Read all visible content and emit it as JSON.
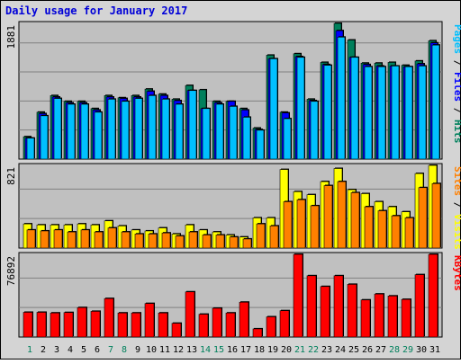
{
  "chart_data": {
    "type": "bar",
    "title": "Daily usage for January 2017",
    "colors": {
      "title": "#0000d8",
      "hits": "#00805c",
      "files": "#0000ff",
      "pages": "#00c0ff",
      "visits": "#ffff00",
      "sites": "#ff8000",
      "kbytes": "#ff0000",
      "weekday_tick": "#000000",
      "weekend_tick": "#00805c",
      "panel_bg": "#c0c0c0",
      "frame_bg": "#d4d4d4"
    },
    "categories": [
      "1",
      "2",
      "3",
      "4",
      "5",
      "6",
      "7",
      "8",
      "9",
      "10",
      "11",
      "12",
      "13",
      "14",
      "15",
      "16",
      "17",
      "18",
      "19",
      "20",
      "21",
      "22",
      "23",
      "24",
      "25",
      "26",
      "27",
      "28",
      "29",
      "30",
      "31"
    ],
    "weekend_days": [
      "1",
      "7",
      "8",
      "14",
      "15",
      "21",
      "22",
      "28",
      "29"
    ],
    "panels": [
      {
        "name": "hits-files-pages",
        "ymax_label": "1881",
        "ylim": [
          0,
          1881
        ],
        "legend": [
          {
            "text": "Pages",
            "color": "#00c0ff"
          },
          {
            "text": " / ",
            "color": "#000000"
          },
          {
            "text": "Files",
            "color": "#0000ff"
          },
          {
            "text": " / ",
            "color": "#000000"
          },
          {
            "text": "Hits",
            "color": "#00805c"
          }
        ],
        "series": [
          {
            "name": "Hits",
            "color": "#00805c",
            "values": [
              310,
              650,
              880,
              800,
              800,
              700,
              880,
              850,
              880,
              970,
              900,
              830,
              1020,
              960,
              800,
              800,
              700,
              430,
              1440,
              650,
              1460,
              830,
              1340,
              1881,
              1650,
              1330,
              1330,
              1340,
              1300,
              1360,
              1640
            ]
          },
          {
            "name": "Files",
            "color": "#0000ff",
            "values": [
              290,
              630,
              860,
              780,
              780,
              680,
              860,
              840,
              860,
              940,
              880,
              810,
              950,
              700,
              780,
              800,
              680,
              410,
              1390,
              640,
              1420,
              810,
              1310,
              1780,
              1410,
              1310,
              1290,
              1290,
              1280,
              1320,
              1610
            ]
          },
          {
            "name": "Pages",
            "color": "#00c0ff",
            "values": [
              290,
              600,
              840,
              760,
              760,
              650,
              830,
              800,
              840,
              880,
              830,
              760,
              950,
              700,
              760,
              730,
              580,
              400,
              1390,
              560,
              1410,
              800,
              1300,
              1690,
              1410,
              1280,
              1280,
              1290,
              1280,
              1290,
              1580
            ]
          }
        ]
      },
      {
        "name": "visits-sites",
        "ymax_label": "821",
        "ylim": [
          0,
          821
        ],
        "legend": [
          {
            "text": "Sites",
            "color": "#ff8000"
          },
          {
            "text": " / ",
            "color": "#000000"
          },
          {
            "text": "Visits",
            "color": "#ffff00"
          }
        ],
        "series": [
          {
            "name": "Visits",
            "color": "#ffff00",
            "values": [
              240,
              230,
              230,
              230,
              240,
              230,
              270,
              220,
              180,
              170,
              200,
              140,
              230,
              180,
              160,
              130,
              110,
              300,
              300,
              780,
              560,
              530,
              660,
              790,
              580,
              540,
              460,
              410,
              360,
              740,
              821
            ]
          },
          {
            "name": "Sites",
            "color": "#ff8000",
            "values": [
              180,
              170,
              180,
              160,
              180,
              160,
              200,
              160,
              140,
              140,
              150,
              120,
              160,
              130,
              130,
              110,
              90,
              240,
              220,
              460,
              480,
              420,
              620,
              660,
              550,
              410,
              370,
              320,
              300,
              600,
              640
            ]
          }
        ]
      },
      {
        "name": "kbytes",
        "ymax_label": "76892",
        "ylim": [
          0,
          76892
        ],
        "legend": [
          {
            "text": "KBytes",
            "color": "#ff0000"
          }
        ],
        "series": [
          {
            "name": "KBytes",
            "color": "#ff0000",
            "values": [
              23000,
              23000,
              22400,
              22800,
              27400,
              23900,
              35800,
              22400,
              22400,
              31200,
              22400,
              12800,
              42000,
              21200,
              26800,
              22400,
              32400,
              7600,
              18800,
              24500,
              76892,
              57000,
              47000,
              57000,
              49000,
              34500,
              40000,
              38200,
              35000,
              58000,
              76892
            ]
          }
        ]
      }
    ]
  }
}
